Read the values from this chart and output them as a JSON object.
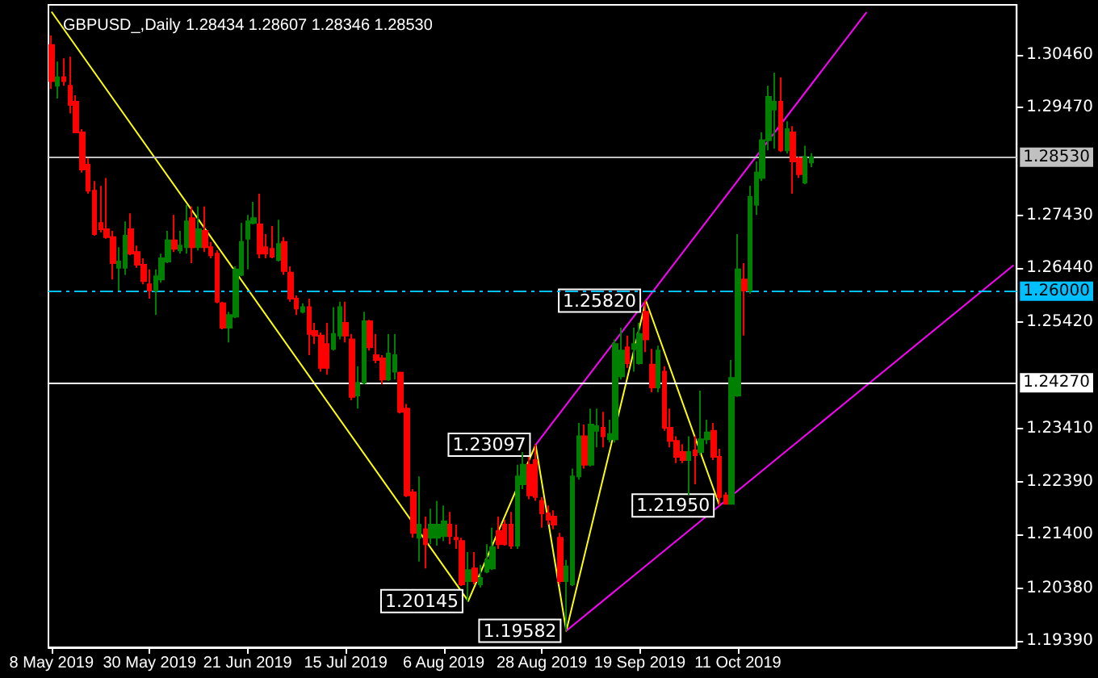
{
  "chart_data": {
    "type": "candlestick",
    "title": "GBPUSD_,Daily",
    "subtitle": "1.28434 1.28607 1.28346 1.28530",
    "categories": [
      "8 May 2019",
      null,
      null,
      null,
      null,
      null,
      null,
      null,
      null,
      null,
      null,
      null,
      null,
      null,
      null,
      null,
      "30 May 2019",
      null,
      null,
      null,
      null,
      null,
      null,
      null,
      null,
      null,
      null,
      null,
      null,
      null,
      null,
      null,
      "21 Jun 2019",
      null,
      null,
      null,
      null,
      null,
      null,
      null,
      null,
      null,
      null,
      null,
      null,
      null,
      null,
      null,
      "15 Jul 2019",
      null,
      null,
      null,
      null,
      null,
      null,
      null,
      null,
      null,
      null,
      null,
      null,
      null,
      null,
      null,
      "6 Aug 2019",
      null,
      null,
      null,
      null,
      null,
      null,
      null,
      null,
      null,
      null,
      null,
      null,
      null,
      null,
      null,
      "28 Aug 2019",
      null,
      null,
      null,
      null,
      null,
      null,
      null,
      null,
      null,
      null,
      null,
      null,
      null,
      null,
      null,
      "19 Sep 2019",
      null,
      null,
      null,
      null,
      null,
      null,
      null,
      null,
      null,
      null,
      null,
      null,
      null,
      null,
      null,
      "11 Oct 2019",
      null,
      null,
      null,
      null,
      null,
      null,
      null,
      null,
      null,
      null,
      null,
      null,
      null,
      null,
      null,
      null,
      null,
      null,
      null,
      null,
      null,
      null,
      null,
      null,
      null,
      null,
      null,
      null,
      null,
      null,
      null,
      null,
      null,
      null,
      null,
      null,
      null,
      null,
      null,
      null,
      null,
      null,
      null,
      null,
      null
    ],
    "ohlc": [
      [
        1.3065,
        1.3083,
        1.2982,
        1.2997
      ],
      [
        1.2988,
        1.3034,
        1.2964,
        1.3004
      ],
      [
        1.3004,
        1.304,
        1.2988,
        1.2997
      ],
      [
        1.2988,
        1.3043,
        1.2936,
        1.2952
      ],
      [
        1.2958,
        1.297,
        1.29,
        1.29
      ],
      [
        1.29,
        1.2906,
        1.2824,
        1.283
      ],
      [
        1.2839,
        1.2851,
        1.2784,
        1.279
      ],
      [
        1.279,
        1.2808,
        1.2705,
        1.2708
      ],
      [
        1.2729,
        1.2799,
        1.2711,
        1.2717
      ],
      [
        1.2717,
        1.2814,
        1.2699,
        1.2702
      ],
      [
        1.2702,
        1.2714,
        1.2622,
        1.2653
      ],
      [
        1.2644,
        1.2683,
        1.2601,
        1.2656
      ],
      [
        1.2644,
        1.2732,
        1.2631,
        1.2705
      ],
      [
        1.2717,
        1.2747,
        1.2668,
        1.2671
      ],
      [
        1.2674,
        1.2686,
        1.2644,
        1.265
      ],
      [
        1.265,
        1.2662,
        1.2613,
        1.2619
      ],
      [
        1.2613,
        1.2641,
        1.2586,
        1.2601
      ],
      [
        1.2601,
        1.2641,
        1.2555,
        1.2628
      ],
      [
        1.2622,
        1.2671,
        1.2616,
        1.2662
      ],
      [
        1.2656,
        1.2714,
        1.2653,
        1.2696
      ],
      [
        1.2696,
        1.2744,
        1.2674,
        1.268
      ],
      [
        1.2677,
        1.2714,
        1.2671,
        1.2686
      ],
      [
        1.2683,
        1.2763,
        1.2671,
        1.2732
      ],
      [
        1.2738,
        1.276,
        1.2653,
        1.2683
      ],
      [
        1.2683,
        1.276,
        1.2677,
        1.2717
      ],
      [
        1.2714,
        1.276,
        1.2674,
        1.2683
      ],
      [
        1.2683,
        1.2693,
        1.2662,
        1.2668
      ],
      [
        1.2671,
        1.2677,
        1.2577,
        1.258
      ],
      [
        1.2577,
        1.258,
        1.2528,
        1.2531
      ],
      [
        1.2531,
        1.2561,
        1.2503,
        1.2555
      ],
      [
        1.2552,
        1.2647,
        1.2549,
        1.2641
      ],
      [
        1.2631,
        1.2729,
        1.2628,
        1.2693
      ],
      [
        1.2699,
        1.2744,
        1.2641,
        1.2732
      ],
      [
        1.2729,
        1.2769,
        1.2726,
        1.2738
      ],
      [
        1.2726,
        1.2784,
        1.2662,
        1.2671
      ],
      [
        1.2683,
        1.2708,
        1.2662,
        1.2671
      ],
      [
        1.268,
        1.2723,
        1.2662,
        1.2665
      ],
      [
        1.2659,
        1.2735,
        1.2656,
        1.2689
      ],
      [
        1.2693,
        1.2702,
        1.2631,
        1.2638
      ],
      [
        1.2635,
        1.2647,
        1.258,
        1.2586
      ],
      [
        1.2586,
        1.2592,
        1.2555,
        1.2567
      ],
      [
        1.2561,
        1.2577,
        1.2558,
        1.257
      ],
      [
        1.257,
        1.2586,
        1.2479,
        1.2519
      ],
      [
        1.2525,
        1.254,
        1.25,
        1.2516
      ],
      [
        1.2516,
        1.2522,
        1.2448,
        1.2455
      ],
      [
        1.25,
        1.254,
        1.2442,
        1.2455
      ],
      [
        1.2491,
        1.257,
        1.2488,
        1.2519
      ],
      [
        1.2516,
        1.258,
        1.2509,
        1.257
      ],
      [
        1.254,
        1.258,
        1.2503,
        1.2516
      ],
      [
        1.2509,
        1.2519,
        1.2394,
        1.24
      ],
      [
        1.2403,
        1.2458,
        1.2378,
        1.2427
      ],
      [
        1.2427,
        1.2561,
        1.2424,
        1.2543
      ],
      [
        1.2543,
        1.2546,
        1.2488,
        1.2494
      ],
      [
        1.2479,
        1.2519,
        1.2464,
        1.247
      ],
      [
        1.2473,
        1.2479,
        1.2424,
        1.2433
      ],
      [
        1.2433,
        1.2519,
        1.243,
        1.2482
      ],
      [
        1.2448,
        1.2519,
        1.2433,
        1.2479
      ],
      [
        1.2446,
        1.2448,
        1.2369,
        1.2372
      ],
      [
        1.2378,
        1.2387,
        1.2211,
        1.2214
      ],
      [
        1.222,
        1.2226,
        1.2134,
        1.2143
      ],
      [
        1.2134,
        1.225,
        1.2089,
        1.2159
      ],
      [
        1.215,
        1.2174,
        1.2076,
        1.2122
      ],
      [
        1.2134,
        1.2189,
        1.2122,
        1.2159
      ],
      [
        1.2134,
        1.2204,
        1.2119,
        1.2159
      ],
      [
        1.2137,
        1.2195,
        1.2128,
        1.2165
      ],
      [
        1.2159,
        1.2183,
        1.2122,
        1.2137
      ],
      [
        1.2134,
        1.2159,
        1.2113,
        1.2131
      ],
      [
        1.2128,
        1.2134,
        1.2043,
        1.2046
      ],
      [
        1.2052,
        1.2107,
        1.20145,
        1.2073
      ],
      [
        1.2076,
        1.2107,
        1.2046,
        1.2052
      ],
      [
        1.2046,
        1.2083,
        1.204,
        1.2058
      ],
      [
        1.207,
        1.2122,
        1.2067,
        1.2092
      ],
      [
        1.2076,
        1.2153,
        1.2073,
        1.2116
      ],
      [
        1.2147,
        1.2174,
        1.2113,
        1.2122
      ],
      [
        1.2159,
        1.2168,
        1.2119,
        1.2122
      ],
      [
        1.2159,
        1.2183,
        1.2113,
        1.2119
      ],
      [
        1.2119,
        1.2272,
        1.2113,
        1.225
      ],
      [
        1.2235,
        1.2296,
        1.2226,
        1.2272
      ],
      [
        1.2272,
        1.2287,
        1.2207,
        1.2214
      ],
      [
        1.2281,
        1.23097,
        1.2204,
        1.2211
      ],
      [
        1.2204,
        1.2211,
        1.2153,
        1.218
      ],
      [
        1.218,
        1.2195,
        1.2159,
        1.2168
      ],
      [
        1.2174,
        1.2186,
        1.215,
        1.2159
      ],
      [
        1.2134,
        1.2143,
        1.2046,
        1.2052
      ],
      [
        1.2052,
        1.2092,
        1.19582,
        1.208
      ],
      [
        1.2046,
        1.2265,
        1.2043,
        1.225
      ],
      [
        1.225,
        1.2351,
        1.2244,
        1.2326
      ],
      [
        1.2326,
        1.2348,
        1.2265,
        1.2272
      ],
      [
        1.2272,
        1.2378,
        1.2269,
        1.2348
      ],
      [
        1.2336,
        1.2378,
        1.2305,
        1.2345
      ],
      [
        1.2342,
        1.2372,
        1.2305,
        1.2326
      ],
      [
        1.232,
        1.2357,
        1.2314,
        1.233
      ],
      [
        1.232,
        1.2509,
        1.2314,
        1.25
      ],
      [
        1.2439,
        1.2531,
        1.2433,
        1.2488
      ],
      [
        1.2494,
        1.2516,
        1.2455,
        1.2464
      ],
      [
        1.2491,
        1.2531,
        1.2448,
        1.25
      ],
      [
        1.2464,
        1.254,
        1.2461,
        1.2519
      ],
      [
        1.2561,
        1.2582,
        1.2485,
        1.2509
      ],
      [
        1.2461,
        1.2491,
        1.2409,
        1.2418
      ],
      [
        1.2418,
        1.2497,
        1.2409,
        1.2488
      ],
      [
        1.2448,
        1.2458,
        1.2336,
        1.2342
      ],
      [
        1.2342,
        1.2378,
        1.2305,
        1.2317
      ],
      [
        1.2317,
        1.2326,
        1.2275,
        1.2287
      ],
      [
        1.2296,
        1.2311,
        1.2275,
        1.2281
      ],
      [
        1.2281,
        1.2326,
        1.2214,
        1.2296
      ],
      [
        1.2299,
        1.2326,
        1.2235,
        1.229
      ],
      [
        1.2296,
        1.2412,
        1.229,
        1.232
      ],
      [
        1.232,
        1.2357,
        1.2311,
        1.2333
      ],
      [
        1.2336,
        1.2351,
        1.2281,
        1.2287
      ],
      [
        1.2287,
        1.2302,
        1.2195,
        1.2211
      ],
      [
        1.2214,
        1.222,
        1.2197,
        1.2198
      ],
      [
        1.2198,
        1.247,
        1.2197,
        1.2436
      ],
      [
        1.2403,
        1.2708,
        1.24,
        1.2641
      ],
      [
        1.2622,
        1.2653,
        1.2516,
        1.2601
      ],
      [
        1.2601,
        1.2799,
        1.2595,
        1.2778
      ],
      [
        1.2763,
        1.2845,
        1.2744,
        1.2824
      ],
      [
        1.2814,
        1.29,
        1.2808,
        1.2885
      ],
      [
        1.2885,
        1.2988,
        1.2866,
        1.2967
      ],
      [
        1.2943,
        1.3013,
        1.2869,
        1.2958
      ],
      [
        1.2958,
        1.3004,
        1.2863,
        1.2866
      ],
      [
        1.2866,
        1.2921,
        1.286,
        1.2906
      ],
      [
        1.29,
        1.2912,
        1.2784,
        1.2845
      ],
      [
        1.2851,
        1.2854,
        1.2814,
        1.2821
      ],
      [
        1.2805,
        1.2875,
        1.2802,
        1.2854
      ],
      [
        1.28434,
        1.28607,
        1.28346,
        1.2853
      ],
      null,
      null,
      null,
      null,
      null,
      null,
      null,
      null,
      null,
      null,
      null,
      null,
      null,
      null,
      null,
      null,
      null,
      null,
      null,
      null,
      null,
      null,
      null,
      null,
      null,
      null,
      null,
      null,
      null,
      null,
      null,
      null,
      null
    ],
    "colors": [
      "#ff0000",
      "#008000",
      "#ff0000",
      "#ff0000",
      "#ff0000",
      "#ff0000",
      "#ff0000",
      "#ff0000",
      "#ff0000",
      "#ff0000",
      "#ff0000",
      "#008000",
      "#008000",
      "#ff0000",
      "#ff0000",
      "#ff0000",
      "#ff0000",
      "#008000",
      "#008000",
      "#008000",
      "#ff0000",
      "#008000",
      "#008000",
      "#ff0000",
      "#008000",
      "#ff0000",
      "#ff0000",
      "#ff0000",
      "#ff0000",
      "#008000",
      "#008000",
      "#008000",
      "#008000",
      "#008000",
      "#ff0000",
      "#ff0000",
      "#ff0000",
      "#008000",
      "#ff0000",
      "#ff0000",
      "#ff0000",
      "#008000",
      "#ff0000",
      "#ff0000",
      "#ff0000",
      "#ff0000",
      "#008000",
      "#008000",
      "#ff0000",
      "#ff0000",
      "#008000",
      "#008000",
      "#ff0000",
      "#ff0000",
      "#ff0000",
      "#008000",
      "#008000",
      "#ff0000",
      "#ff0000",
      "#ff0000",
      "#008000",
      "#ff0000",
      "#008000",
      "#008000",
      "#008000",
      "#ff0000",
      "#ff0000",
      "#ff0000",
      "#008000",
      "#ff0000",
      "#008000",
      "#008000",
      "#008000",
      "#ff0000",
      "#ff0000",
      "#ff0000",
      "#008000",
      "#008000",
      "#ff0000",
      "#ff0000",
      "#ff0000",
      "#ff0000",
      "#ff0000",
      "#ff0000",
      "#008000",
      "#008000",
      "#008000",
      "#ff0000",
      "#008000",
      "#008000",
      "#ff0000",
      "#008000",
      "#008000",
      "#008000",
      "#ff0000",
      "#008000",
      "#008000",
      "#ff0000",
      "#ff0000",
      "#008000",
      "#ff0000",
      "#ff0000",
      "#ff0000",
      "#ff0000",
      "#008000",
      "#ff0000",
      "#008000",
      "#008000",
      "#ff0000",
      "#ff0000",
      "#ff0000",
      "#008000",
      "#008000",
      "#ff0000",
      "#008000",
      "#008000",
      "#008000",
      "#008000",
      "#008000",
      "#ff0000",
      "#008000",
      "#ff0000",
      "#ff0000",
      "#008000",
      "#008000",
      null,
      null,
      null,
      null,
      null,
      null,
      null,
      null,
      null,
      null,
      null,
      null,
      null,
      null,
      null,
      null,
      null,
      null,
      null,
      null,
      null,
      null,
      null,
      null,
      null,
      null,
      null,
      null,
      null,
      null,
      null,
      null,
      null
    ],
    "series": [
      {
        "type": "line",
        "color": "#ffff00",
        "values": [
          1.3128,
          null,
          null,
          null,
          null,
          null,
          null,
          null,
          null,
          null,
          null,
          null,
          null,
          null,
          null,
          null,
          null,
          null,
          null,
          null,
          null,
          null,
          null,
          null,
          null,
          null,
          null,
          null,
          null,
          null,
          null,
          null,
          null,
          null,
          null,
          null,
          null,
          null,
          null,
          null,
          null,
          null,
          null,
          null,
          null,
          null,
          null,
          null,
          null,
          null,
          null,
          null,
          null,
          null,
          null,
          null,
          null,
          null,
          null,
          null,
          null,
          null,
          null,
          null,
          null,
          null,
          null,
          null,
          1.20145,
          null,
          null,
          null,
          null,
          null,
          null,
          null,
          null,
          null,
          null,
          1.23097,
          null,
          null,
          null,
          null,
          1.19582,
          null,
          null,
          null,
          null,
          null,
          null,
          null,
          null,
          null,
          null,
          null,
          null,
          1.2582,
          null,
          null,
          null,
          null,
          null,
          null,
          null,
          null,
          null,
          null,
          null,
          1.2195,
          null,
          null,
          null,
          null,
          null,
          null,
          null,
          null,
          null,
          null,
          null,
          null,
          null,
          null,
          null,
          null,
          null,
          null,
          null,
          null,
          null,
          null,
          null,
          null,
          null,
          null,
          null,
          null,
          null,
          null,
          null,
          null,
          null,
          null,
          null,
          null,
          null,
          null,
          null,
          null,
          null,
          null,
          null,
          null,
          null,
          null,
          null,
          null
        ],
        "value_labels": [
          null,
          null,
          null,
          null,
          null,
          null,
          null,
          null,
          null,
          null,
          null,
          null,
          null,
          null,
          null,
          null,
          null,
          null,
          null,
          null,
          null,
          null,
          null,
          null,
          null,
          null,
          null,
          null,
          null,
          null,
          null,
          null,
          null,
          null,
          null,
          null,
          null,
          null,
          null,
          null,
          null,
          null,
          null,
          null,
          null,
          null,
          null,
          null,
          null,
          null,
          null,
          null,
          null,
          null,
          null,
          null,
          null,
          null,
          null,
          null,
          null,
          null,
          null,
          null,
          null,
          null,
          null,
          null,
          "1.20145",
          null,
          null,
          null,
          null,
          null,
          null,
          null,
          null,
          null,
          null,
          "1.23097",
          null,
          null,
          null,
          null,
          "1.19582",
          null,
          null,
          null,
          null,
          null,
          null,
          null,
          null,
          null,
          null,
          null,
          null,
          "1.25820",
          null,
          null,
          null,
          null,
          null,
          null,
          null,
          null,
          null,
          null,
          null,
          "1.21950",
          null,
          null,
          null,
          null,
          null,
          null,
          null,
          null,
          null,
          null,
          null,
          null,
          null,
          null,
          null,
          null,
          null,
          null,
          null,
          null,
          null,
          null,
          null,
          null,
          null,
          null,
          null,
          null,
          null,
          null,
          null,
          null,
          null,
          null,
          null,
          null,
          null,
          null,
          null,
          null,
          null,
          null,
          null,
          null,
          null,
          null,
          null,
          null
        ]
      },
      {
        "type": "line",
        "color": "#ff00ff",
        "values": [
          null,
          null,
          null,
          null,
          null,
          null,
          null,
          null,
          null,
          null,
          null,
          null,
          null,
          null,
          null,
          null,
          null,
          null,
          null,
          null,
          null,
          null,
          null,
          null,
          null,
          null,
          null,
          null,
          null,
          null,
          null,
          null,
          null,
          null,
          null,
          null,
          null,
          null,
          null,
          null,
          null,
          null,
          null,
          null,
          null,
          null,
          null,
          null,
          null,
          null,
          null,
          null,
          null,
          null,
          null,
          null,
          null,
          null,
          null,
          null,
          null,
          null,
          null,
          null,
          null,
          null,
          null,
          null,
          null,
          null,
          null,
          null,
          null,
          null,
          null,
          null,
          null,
          null,
          null,
          1.23097,
          null,
          null,
          null,
          null,
          null,
          null,
          null,
          null,
          null,
          null,
          null,
          null,
          null,
          null,
          null,
          null,
          null,
          null,
          null,
          null,
          null,
          null,
          null,
          null,
          null,
          null,
          null,
          null,
          null,
          null,
          null,
          null,
          null,
          null,
          null,
          null,
          null,
          null,
          null,
          null,
          null,
          null,
          null,
          null,
          null,
          null,
          null,
          null,
          null,
          null,
          null,
          null,
          null,
          1.3127,
          null,
          null,
          null,
          null,
          null,
          null,
          null,
          null,
          null,
          null,
          null,
          null,
          null,
          null,
          null,
          null,
          null,
          null,
          null,
          null,
          null,
          null,
          null,
          null
        ]
      },
      {
        "type": "line",
        "color": "#ff00ff",
        "values": [
          null,
          null,
          null,
          null,
          null,
          null,
          null,
          null,
          null,
          null,
          null,
          null,
          null,
          null,
          null,
          null,
          null,
          null,
          null,
          null,
          null,
          null,
          null,
          null,
          null,
          null,
          null,
          null,
          null,
          null,
          null,
          null,
          null,
          null,
          null,
          null,
          null,
          null,
          null,
          null,
          null,
          null,
          null,
          null,
          null,
          null,
          null,
          null,
          null,
          null,
          null,
          null,
          null,
          null,
          null,
          null,
          null,
          null,
          null,
          null,
          null,
          null,
          null,
          null,
          null,
          null,
          null,
          null,
          null,
          null,
          null,
          null,
          null,
          null,
          null,
          null,
          null,
          null,
          null,
          null,
          null,
          null,
          null,
          null,
          1.19582,
          null,
          null,
          null,
          null,
          null,
          null,
          null,
          null,
          null,
          null,
          null,
          null,
          null,
          null,
          null,
          null,
          null,
          null,
          null,
          null,
          null,
          null,
          null,
          null,
          null,
          null,
          null,
          null,
          null,
          null,
          null,
          null,
          null,
          null,
          null,
          null,
          null,
          null,
          null,
          null,
          null,
          null,
          null,
          null,
          null,
          null,
          null,
          null,
          null,
          null,
          null,
          null,
          null,
          null,
          null,
          null,
          null,
          null,
          null,
          null,
          null,
          null,
          null,
          null,
          null,
          null,
          null,
          null,
          null,
          null,
          null,
          null,
          1.2649
        ]
      }
    ],
    "ylim": [
      1.1927,
      1.3141
    ],
    "yticks": [
      {
        "value": 1.3046,
        "label": "1.30460"
      },
      {
        "value": 1.2947,
        "label": "1.29470"
      },
      {
        "value": 1.2743,
        "label": "1.27430"
      },
      {
        "value": 1.2644,
        "label": "1.26440"
      },
      {
        "value": 1.2542,
        "label": "1.25420"
      },
      {
        "value": 1.2341,
        "label": "1.23410"
      },
      {
        "value": 1.2239,
        "label": "1.22390"
      },
      {
        "value": 1.214,
        "label": "1.21400"
      },
      {
        "value": 1.2038,
        "label": "1.20380"
      },
      {
        "value": 1.1939,
        "label": "1.19390"
      }
    ],
    "ref_lines": [
      {
        "axis": "y",
        "value": 1.2853,
        "label": "1.28530",
        "color": "#c0c0c0",
        "line_style": "solid"
      },
      {
        "axis": "y",
        "value": 1.26,
        "label": "1.26000",
        "color": "#00bfff",
        "line_style": "dashed"
      },
      {
        "axis": "y",
        "value": 1.2427,
        "label": "1.24270",
        "color": "#ffffff",
        "line_style": "solid"
      }
    ],
    "marker": "none",
    "grid": false
  }
}
